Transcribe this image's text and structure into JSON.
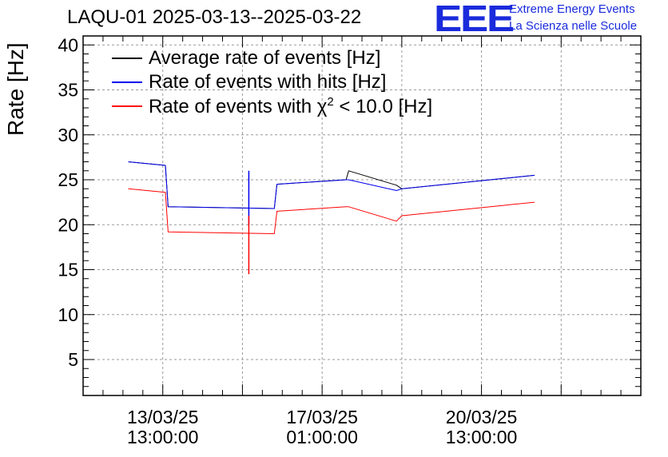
{
  "chart_data": {
    "type": "line",
    "title": "LAQU-01 2025-03-13--2025-03-22",
    "ylabel": "Rate [Hz]",
    "xlabel": "",
    "ylim": [
      1,
      41
    ],
    "yticks": [
      5,
      10,
      15,
      20,
      25,
      30,
      35,
      40
    ],
    "xlim_days": [
      0,
      10.5
    ],
    "xticks": [
      {
        "day": 1.5,
        "date": "13/03/25",
        "time": "13:00:00"
      },
      {
        "day": 4.5,
        "date": "17/03/25",
        "time": "01:00:00"
      },
      {
        "day": 7.5,
        "date": "20/03/25",
        "time": "13:00:00"
      }
    ],
    "grid": true,
    "legend_position": "top-left",
    "series": [
      {
        "name": "Average rate of events [Hz]",
        "color": "#000000",
        "points": [
          [
            0.85,
            27.0
          ],
          [
            1.55,
            26.6
          ],
          [
            1.6,
            22.0
          ],
          [
            3.6,
            21.8
          ],
          [
            3.65,
            24.5
          ],
          [
            4.95,
            25.0
          ],
          [
            5.0,
            26.0
          ],
          [
            5.9,
            24.4
          ],
          [
            6.0,
            24.0
          ],
          [
            8.5,
            25.5
          ]
        ]
      },
      {
        "name": "Rate of events with hits [Hz]",
        "color": "#0000ee",
        "points": [
          [
            0.85,
            27.0
          ],
          [
            1.55,
            26.6
          ],
          [
            1.6,
            22.0
          ],
          [
            3.6,
            21.8
          ],
          [
            3.65,
            24.5
          ],
          [
            4.95,
            25.0
          ],
          [
            5.0,
            25.0
          ],
          [
            5.9,
            23.8
          ],
          [
            6.0,
            24.0
          ],
          [
            8.5,
            25.5
          ]
        ]
      },
      {
        "name": "Rate of events with χ² < 10.0 [Hz]",
        "color": "#ff0000",
        "points": [
          [
            0.85,
            24.0
          ],
          [
            1.55,
            23.6
          ],
          [
            1.6,
            19.2
          ],
          [
            3.6,
            19.0
          ],
          [
            3.65,
            21.5
          ],
          [
            4.95,
            22.0
          ],
          [
            5.0,
            22.0
          ],
          [
            5.9,
            20.4
          ],
          [
            6.0,
            21.0
          ],
          [
            8.5,
            22.5
          ]
        ]
      }
    ],
    "legend_labels": {
      "black": "Average rate of events [Hz]",
      "blue": "Rate of events with hits [Hz]",
      "red_prefix": "Rate of events with ",
      "red_chi": "χ",
      "red_sup": "2",
      "red_suffix": " < 10.0 [Hz]"
    }
  },
  "logo": {
    "mark": "EEE",
    "line1": "Extreme Energy Events",
    "line2": "La Scienza nelle Scuole"
  },
  "colors": {
    "black": "#000000",
    "blue": "#0000ee",
    "red": "#ff0000",
    "logo": "#1a2bdc"
  }
}
